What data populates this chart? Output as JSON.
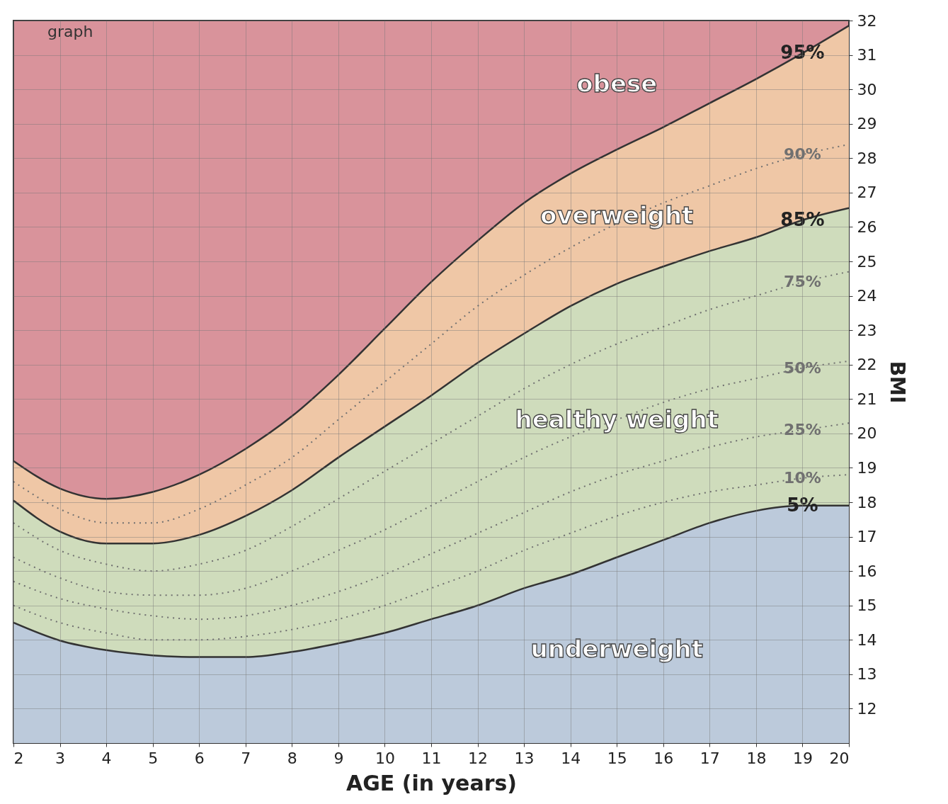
{
  "chart_data": {
    "type": "line",
    "xlabel": "AGE  (in years)",
    "ylabel": "BMI",
    "xlim": [
      2,
      20
    ],
    "ylim": [
      11,
      32
    ],
    "xticks": [
      2,
      3,
      4,
      5,
      6,
      7,
      8,
      9,
      10,
      11,
      12,
      13,
      14,
      15,
      16,
      17,
      18,
      19,
      20
    ],
    "yticks": [
      12,
      13,
      14,
      15,
      16,
      17,
      18,
      19,
      20,
      21,
      22,
      23,
      24,
      25,
      26,
      27,
      28,
      29,
      30,
      31,
      32
    ],
    "grid": true,
    "x": [
      2,
      3,
      4,
      5,
      6,
      7,
      8,
      9,
      10,
      11,
      12,
      13,
      14,
      15,
      16,
      17,
      18,
      19,
      20
    ],
    "series": [
      {
        "type": "area",
        "name": "95%",
        "color": "#efc7a6",
        "values": [
          19.2,
          18.4,
          18.1,
          18.3,
          18.8,
          19.55,
          20.5,
          21.7,
          23.05,
          24.4,
          25.6,
          26.7,
          27.55,
          28.25,
          28.9,
          29.6,
          30.3,
          31.05,
          31.85
        ]
      },
      {
        "type": "area",
        "name": "85%",
        "color": "#cfdcbc",
        "values": [
          18.05,
          17.15,
          16.8,
          16.8,
          17.05,
          17.6,
          18.35,
          19.3,
          20.2,
          21.1,
          22.05,
          22.9,
          23.7,
          24.35,
          24.85,
          25.3,
          25.7,
          26.2,
          26.55
        ]
      },
      {
        "type": "area",
        "name": "5%",
        "color": "#bccadb",
        "values": [
          14.5,
          13.98,
          13.7,
          13.55,
          13.5,
          13.5,
          13.65,
          13.9,
          14.2,
          14.6,
          15.0,
          15.5,
          15.9,
          16.4,
          16.9,
          17.4,
          17.75,
          17.9,
          17.9
        ]
      },
      {
        "name": "90%",
        "color": "#707070",
        "line_style": "dotted",
        "values": [
          18.6,
          17.8,
          17.4,
          17.4,
          17.8,
          18.5,
          19.3,
          20.4,
          21.5,
          22.6,
          23.7,
          24.6,
          25.4,
          26.1,
          26.7,
          27.2,
          27.7,
          28.1,
          28.4
        ]
      },
      {
        "name": "75%",
        "color": "#707070",
        "line_style": "dotted",
        "values": [
          17.4,
          16.6,
          16.2,
          16.0,
          16.2,
          16.6,
          17.3,
          18.1,
          18.9,
          19.7,
          20.5,
          21.3,
          22.0,
          22.6,
          23.1,
          23.6,
          24.0,
          24.4,
          24.7
        ]
      },
      {
        "name": "50%",
        "color": "#707070",
        "line_style": "dotted",
        "values": [
          16.4,
          15.8,
          15.4,
          15.3,
          15.3,
          15.5,
          16.0,
          16.6,
          17.2,
          17.9,
          18.6,
          19.3,
          19.9,
          20.4,
          20.9,
          21.3,
          21.6,
          21.9,
          22.1
        ]
      },
      {
        "name": "25%",
        "color": "#707070",
        "line_style": "dotted",
        "values": [
          15.7,
          15.2,
          14.9,
          14.7,
          14.6,
          14.7,
          15.0,
          15.4,
          15.9,
          16.5,
          17.1,
          17.7,
          18.3,
          18.8,
          19.2,
          19.6,
          19.9,
          20.1,
          20.3
        ]
      },
      {
        "name": "10%",
        "color": "#707070",
        "line_style": "dotted",
        "values": [
          15.0,
          14.5,
          14.2,
          14.0,
          14.0,
          14.1,
          14.3,
          14.6,
          15.0,
          15.5,
          16.0,
          16.6,
          17.1,
          17.6,
          18.0,
          18.3,
          18.5,
          18.7,
          18.8
        ]
      }
    ],
    "annotations": [
      "graph",
      "obese",
      "overweight",
      "healthy weight",
      "underweight"
    ]
  }
}
